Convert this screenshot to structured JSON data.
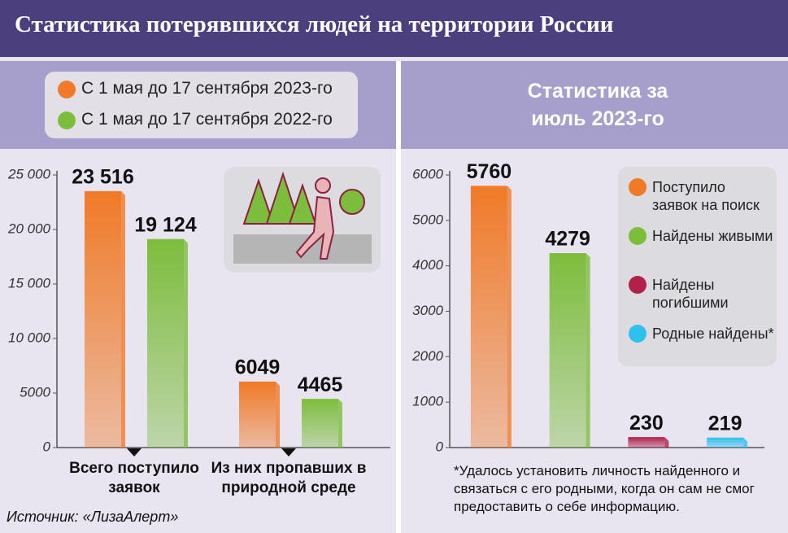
{
  "title": "Статистика потерявшихся людей на территории России",
  "source": "Источник: «ЛизаАлерт»",
  "chart_data": [
    {
      "type": "bar",
      "categories": [
        "Всего поступило заявок",
        "Из них пропавших в природной среде"
      ],
      "series": [
        {
          "name": "С 1 мая до 17 сентября 2023-го",
          "color": "#f07a28",
          "values": [
            23516,
            6049
          ],
          "value_labels": [
            "23 516",
            "6049"
          ]
        },
        {
          "name": "С 1 мая до 17 сентября 2022-го",
          "color": "#7dbd3c",
          "values": [
            19124,
            4465
          ],
          "value_labels": [
            "19 124",
            "4465"
          ]
        }
      ],
      "ylim": [
        0,
        25000
      ],
      "yticks": [
        0,
        5000,
        {
          "value": 10000,
          "label": "10 000"
        },
        {
          "value": 15000,
          "label": "15 000"
        },
        {
          "value": 20000,
          "label": "20 000"
        },
        {
          "value": 25000,
          "label": "25 000"
        }
      ]
    },
    {
      "type": "bar",
      "title": "Статистика за июль 2023-го",
      "categories": [
        "Поступило заявок на поиск",
        "Найдены живыми",
        "Найдены погибшими",
        "Родные найдены*"
      ],
      "values": [
        5760,
        4279,
        230,
        219
      ],
      "colors": [
        "#f07a28",
        "#7dbd3c",
        "#b0224a",
        "#2fc0ee"
      ],
      "ylim": [
        0,
        6000
      ],
      "yticks": [
        0,
        1000,
        2000,
        3000,
        4000,
        5000,
        6000
      ],
      "note": "*Удалось установить личность найденного и связаться с его родными, когда он сам не смог предоставить о себе информацию."
    }
  ]
}
